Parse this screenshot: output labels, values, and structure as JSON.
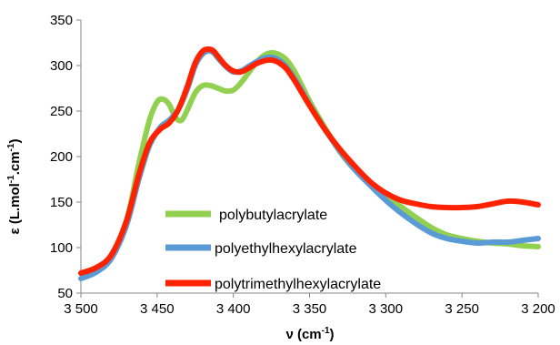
{
  "chart_data": {
    "type": "line",
    "title": "",
    "xlabel": "ν (cm",
    "xlabel_sup": "-1",
    "xlabel_end": ")",
    "ylabel_parts": [
      "ε (L.mol",
      "-1",
      ".cm",
      "-1",
      ")"
    ],
    "xlim": [
      3500,
      3200
    ],
    "ylim": [
      50,
      350
    ],
    "x_ticks": [
      3500,
      3450,
      3400,
      3350,
      3300,
      3250,
      3200
    ],
    "x_tick_labels": [
      "3 500",
      "3 450",
      "3 400",
      "3 350",
      "3 300",
      "3 250",
      "3 200"
    ],
    "y_ticks": [
      50,
      100,
      150,
      200,
      250,
      300,
      350
    ],
    "y_tick_labels": [
      "50",
      "100",
      "150",
      "200",
      "250",
      "300",
      "350"
    ],
    "grid": false,
    "legend_position": "inside-bottom-left",
    "series": [
      {
        "name": "polybutylacrylate",
        "color": "#92D050",
        "x": [
          3500,
          3490,
          3480,
          3470,
          3462,
          3455,
          3450,
          3446,
          3442,
          3438,
          3434,
          3430,
          3425,
          3420,
          3415,
          3410,
          3405,
          3400,
          3395,
          3390,
          3385,
          3380,
          3375,
          3370,
          3365,
          3360,
          3355,
          3350,
          3340,
          3330,
          3320,
          3310,
          3300,
          3290,
          3280,
          3270,
          3260,
          3250,
          3240,
          3230,
          3220,
          3210,
          3200
        ],
        "y": [
          72,
          78,
          92,
          130,
          192,
          240,
          260,
          263,
          257,
          243,
          240,
          252,
          270,
          278,
          278,
          275,
          272,
          273,
          281,
          292,
          303,
          311,
          314,
          312,
          306,
          294,
          278,
          261,
          232,
          205,
          185,
          170,
          157,
          145,
          133,
          122,
          114,
          110,
          107,
          105,
          104,
          102,
          101
        ]
      },
      {
        "name": "polyethylhexylacrylate",
        "color": "#5B9BD5",
        "x": [
          3500,
          3490,
          3480,
          3470,
          3462,
          3455,
          3448,
          3442,
          3436,
          3430,
          3425,
          3420,
          3416,
          3413,
          3410,
          3405,
          3400,
          3395,
          3390,
          3385,
          3380,
          3375,
          3370,
          3365,
          3360,
          3355,
          3350,
          3340,
          3330,
          3320,
          3310,
          3300,
          3290,
          3280,
          3270,
          3260,
          3250,
          3240,
          3230,
          3220,
          3210,
          3200
        ],
        "y": [
          66,
          73,
          88,
          125,
          175,
          212,
          232,
          240,
          252,
          275,
          300,
          313,
          316,
          314,
          308,
          299,
          293,
          294,
          299,
          304,
          308,
          309,
          306,
          298,
          286,
          272,
          257,
          230,
          206,
          185,
          168,
          152,
          138,
          126,
          116,
          110,
          107,
          105,
          106,
          106,
          108,
          110
        ]
      },
      {
        "name": "polytrimethylhexylacrylate",
        "color": "#FF2200",
        "x": [
          3500,
          3490,
          3480,
          3470,
          3462,
          3455,
          3448,
          3442,
          3436,
          3430,
          3425,
          3420,
          3416,
          3413,
          3410,
          3405,
          3400,
          3395,
          3390,
          3385,
          3380,
          3375,
          3370,
          3365,
          3360,
          3355,
          3350,
          3340,
          3330,
          3320,
          3310,
          3300,
          3290,
          3280,
          3270,
          3260,
          3250,
          3240,
          3230,
          3220,
          3210,
          3200
        ],
        "y": [
          72,
          78,
          92,
          130,
          180,
          215,
          230,
          237,
          252,
          278,
          303,
          316,
          318,
          316,
          310,
          300,
          294,
          293,
          297,
          302,
          305,
          306,
          303,
          296,
          284,
          270,
          256,
          230,
          208,
          189,
          172,
          160,
          152,
          148,
          145,
          144,
          144,
          145,
          148,
          151,
          150,
          147
        ]
      }
    ]
  }
}
